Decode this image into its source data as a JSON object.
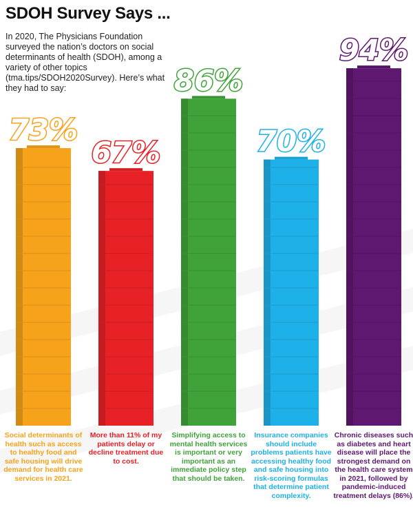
{
  "page": {
    "title": "SDOH Survey Says ...",
    "intro": "In 2020, The Physicians Foundation surveyed the nation’s doctors on social determinants of health (SDOH), among a variety of other topics (tma.tips/SDOH2020Survey). Here’s what they had to say:"
  },
  "chart_data": {
    "type": "bar",
    "title": "SDOH Survey Says ...",
    "xlabel": "",
    "ylabel": "",
    "ylim": [
      0,
      100
    ],
    "grid": false,
    "legend": "none",
    "categories": [
      "Social determinants of health such as access to healthy food and safe housing will drive demand for health care services in 2021.",
      "More than 11% of my patients delay or decline treatment due to cost.",
      "Simplifying access to mental health services is important or very important as an immediate policy step that should be taken.",
      "Insurance companies should include problems patients have accessing healthy food and safe housing into risk-scoring formulas that determine patient complexity.",
      "Chronic diseases such as diabetes and heart disease will place the strongest demand on the health care system in 2021, followed by pandemic-induced treatment delays (86%)."
    ],
    "values": [
      73,
      67,
      86,
      70,
      94
    ],
    "labels": [
      "73%",
      "67%",
      "86%",
      "70%",
      "94%"
    ],
    "colors": [
      "#F7A21B",
      "#E82127",
      "#3FA33A",
      "#1EB0E8",
      "#5E1870"
    ]
  }
}
